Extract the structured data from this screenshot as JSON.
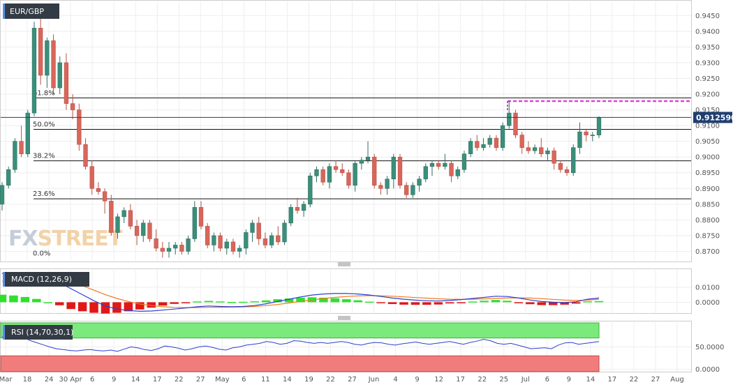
{
  "chart_data": [
    {
      "type": "candlestick",
      "title": "EUR/GBP",
      "ylim": [
        0.867,
        0.9495
      ],
      "y_ticks": [
        "0.9450",
        "0.9400",
        "0.9350",
        "0.9300",
        "0.9250",
        "0.9200",
        "0.9150",
        "0.9100",
        "0.9050",
        "0.9000",
        "0.8950",
        "0.8900",
        "0.8850",
        "0.8800",
        "0.8750",
        "0.8700"
      ],
      "x_ticks": [
        "Mar",
        "18",
        "24",
        "30 Apr",
        "6",
        "9",
        "14",
        "17",
        "22",
        "27",
        "May",
        "6",
        "11",
        "14",
        "19",
        "22",
        "27",
        "Jun",
        "4",
        "9",
        "12",
        "17",
        "22",
        "25",
        "Jul",
        "6",
        "9",
        "14",
        "17",
        "22",
        "27",
        "Aug"
      ],
      "last_price_label": "0.912590",
      "last_price": 0.91259,
      "resistance_level": 0.9178,
      "fib_levels": [
        {
          "label": "61.8%",
          "value": 0.9188
        },
        {
          "label": "50.0%",
          "value": 0.9088
        },
        {
          "label": "38.2%",
          "value": 0.8988
        },
        {
          "label": "23.6%",
          "value": 0.8867
        },
        {
          "label": "0.0%",
          "value": 0.8678
        }
      ],
      "candles": [
        [
          0.885,
          0.892,
          0.883,
          0.891
        ],
        [
          0.891,
          0.897,
          0.89,
          0.896
        ],
        [
          0.896,
          0.906,
          0.895,
          0.905
        ],
        [
          0.905,
          0.91,
          0.9,
          0.901
        ],
        [
          0.901,
          0.915,
          0.9,
          0.914
        ],
        [
          0.914,
          0.943,
          0.913,
          0.941
        ],
        [
          0.941,
          0.947,
          0.923,
          0.926
        ],
        [
          0.926,
          0.938,
          0.922,
          0.937
        ],
        [
          0.937,
          0.939,
          0.92,
          0.922
        ],
        [
          0.922,
          0.932,
          0.92,
          0.93
        ],
        [
          0.93,
          0.933,
          0.915,
          0.917
        ],
        [
          0.917,
          0.92,
          0.912,
          0.915
        ],
        [
          0.915,
          0.917,
          0.902,
          0.904
        ],
        [
          0.904,
          0.906,
          0.896,
          0.897
        ],
        [
          0.897,
          0.899,
          0.888,
          0.89
        ],
        [
          0.89,
          0.892,
          0.888,
          0.889
        ],
        [
          0.889,
          0.89,
          0.882,
          0.886
        ],
        [
          0.886,
          0.888,
          0.875,
          0.876
        ],
        [
          0.876,
          0.882,
          0.874,
          0.881
        ],
        [
          0.881,
          0.884,
          0.879,
          0.883
        ],
        [
          0.883,
          0.885,
          0.877,
          0.878
        ],
        [
          0.878,
          0.88,
          0.872,
          0.875
        ],
        [
          0.875,
          0.88,
          0.873,
          0.879
        ],
        [
          0.879,
          0.88,
          0.873,
          0.874
        ],
        [
          0.874,
          0.877,
          0.87,
          0.871
        ],
        [
          0.871,
          0.873,
          0.868,
          0.87
        ],
        [
          0.87,
          0.873,
          0.868,
          0.871
        ],
        [
          0.871,
          0.873,
          0.869,
          0.872
        ],
        [
          0.872,
          0.873,
          0.869,
          0.87
        ],
        [
          0.87,
          0.875,
          0.869,
          0.874
        ],
        [
          0.874,
          0.886,
          0.873,
          0.884
        ],
        [
          0.884,
          0.886,
          0.877,
          0.878
        ],
        [
          0.878,
          0.879,
          0.871,
          0.872
        ],
        [
          0.872,
          0.876,
          0.87,
          0.875
        ],
        [
          0.875,
          0.876,
          0.87,
          0.871
        ],
        [
          0.871,
          0.874,
          0.869,
          0.873
        ],
        [
          0.873,
          0.874,
          0.869,
          0.87
        ],
        [
          0.87,
          0.872,
          0.868,
          0.871
        ],
        [
          0.871,
          0.877,
          0.869,
          0.876
        ],
        [
          0.876,
          0.88,
          0.873,
          0.879
        ],
        [
          0.879,
          0.881,
          0.872,
          0.874
        ],
        [
          0.874,
          0.876,
          0.871,
          0.872
        ],
        [
          0.872,
          0.876,
          0.871,
          0.875
        ],
        [
          0.875,
          0.878,
          0.872,
          0.873
        ],
        [
          0.873,
          0.88,
          0.872,
          0.879
        ],
        [
          0.879,
          0.885,
          0.878,
          0.884
        ],
        [
          0.884,
          0.887,
          0.882,
          0.883
        ],
        [
          0.883,
          0.886,
          0.881,
          0.885
        ],
        [
          0.885,
          0.895,
          0.884,
          0.894
        ],
        [
          0.894,
          0.897,
          0.892,
          0.896
        ],
        [
          0.896,
          0.897,
          0.891,
          0.892
        ],
        [
          0.892,
          0.898,
          0.89,
          0.897
        ],
        [
          0.897,
          0.899,
          0.895,
          0.896
        ],
        [
          0.896,
          0.898,
          0.894,
          0.895
        ],
        [
          0.895,
          0.896,
          0.89,
          0.891
        ],
        [
          0.891,
          0.899,
          0.889,
          0.898
        ],
        [
          0.898,
          0.9,
          0.896,
          0.899
        ],
        [
          0.899,
          0.905,
          0.898,
          0.9
        ],
        [
          0.9,
          0.901,
          0.89,
          0.891
        ],
        [
          0.891,
          0.892,
          0.888,
          0.89
        ],
        [
          0.89,
          0.894,
          0.888,
          0.893
        ],
        [
          0.893,
          0.901,
          0.89,
          0.9
        ],
        [
          0.9,
          0.901,
          0.89,
          0.891
        ],
        [
          0.891,
          0.892,
          0.887,
          0.888
        ],
        [
          0.888,
          0.892,
          0.887,
          0.891
        ],
        [
          0.891,
          0.894,
          0.889,
          0.893
        ],
        [
          0.893,
          0.898,
          0.892,
          0.897
        ],
        [
          0.897,
          0.899,
          0.894,
          0.898
        ],
        [
          0.898,
          0.899,
          0.896,
          0.897
        ],
        [
          0.897,
          0.901,
          0.896,
          0.898
        ],
        [
          0.898,
          0.899,
          0.892,
          0.894
        ],
        [
          0.894,
          0.897,
          0.893,
          0.896
        ],
        [
          0.896,
          0.902,
          0.895,
          0.901
        ],
        [
          0.901,
          0.906,
          0.9,
          0.905
        ],
        [
          0.905,
          0.907,
          0.902,
          0.903
        ],
        [
          0.903,
          0.906,
          0.902,
          0.904
        ],
        [
          0.904,
          0.907,
          0.903,
          0.906
        ],
        [
          0.906,
          0.907,
          0.902,
          0.903
        ],
        [
          0.903,
          0.911,
          0.902,
          0.91
        ],
        [
          0.91,
          0.918,
          0.909,
          0.914
        ],
        [
          0.914,
          0.915,
          0.906,
          0.907
        ],
        [
          0.907,
          0.908,
          0.901,
          0.903
        ],
        [
          0.903,
          0.905,
          0.901,
          0.902
        ],
        [
          0.902,
          0.904,
          0.901,
          0.903
        ],
        [
          0.903,
          0.906,
          0.9,
          0.901
        ],
        [
          0.901,
          0.903,
          0.899,
          0.902
        ],
        [
          0.902,
          0.903,
          0.896,
          0.898
        ],
        [
          0.898,
          0.899,
          0.895,
          0.896
        ],
        [
          0.896,
          0.897,
          0.894,
          0.895
        ],
        [
          0.895,
          0.904,
          0.894,
          0.903
        ],
        [
          0.903,
          0.911,
          0.901,
          0.908
        ],
        [
          0.908,
          0.909,
          0.905,
          0.907
        ],
        [
          0.907,
          0.908,
          0.905,
          0.907
        ],
        [
          0.907,
          0.913,
          0.906,
          0.91259
        ]
      ]
    },
    {
      "type": "line",
      "title": "MACD (12,26,9)",
      "ylim": [
        -0.0072,
        0.0215
      ],
      "y_ticks": [
        "0.0100",
        "0.0000"
      ],
      "macd": [
        0.019,
        0.0197,
        0.0195,
        0.0185,
        0.016,
        0.013,
        0.009,
        0.005,
        0.001,
        -0.0025,
        -0.0045,
        -0.0055,
        -0.006,
        -0.0058,
        -0.0052,
        -0.0045,
        -0.0038,
        -0.003,
        -0.0025,
        -0.0028,
        -0.003,
        -0.0028,
        -0.0022,
        -0.001,
        0.0005,
        0.002,
        0.0035,
        0.0048,
        0.0055,
        0.0058,
        0.0058,
        0.0055,
        0.0048,
        0.0038,
        0.0028,
        0.002,
        0.0014,
        0.001,
        0.0008,
        0.0012,
        0.0018,
        0.0025,
        0.0032,
        0.004,
        0.0038,
        0.0028,
        0.0015,
        0.0005,
        0.0,
        -0.0002,
        0.0003,
        0.002,
        0.0028
      ],
      "signal": [
        0.014,
        0.0152,
        0.016,
        0.0163,
        0.016,
        0.015,
        0.0135,
        0.011,
        0.008,
        0.005,
        0.0025,
        0.0005,
        -0.0012,
        -0.0022,
        -0.003,
        -0.0034,
        -0.0036,
        -0.0035,
        -0.0034,
        -0.0033,
        -0.0032,
        -0.0031,
        -0.0028,
        -0.0022,
        -0.0015,
        -0.0005,
        0.0005,
        0.0015,
        0.0025,
        0.0032,
        0.0038,
        0.0042,
        0.0044,
        0.0043,
        0.004,
        0.0036,
        0.0031,
        0.0027,
        0.0023,
        0.002,
        0.0019,
        0.002,
        0.0022,
        0.0025,
        0.0028,
        0.0029,
        0.0028,
        0.0024,
        0.0019,
        0.0014,
        0.0012,
        0.0014,
        0.002
      ]
    },
    {
      "type": "line",
      "title": "RSI (14,70,30,1)",
      "ylim": [
        0,
        100
      ],
      "y_ticks": [
        "50.0000",
        "0.0000"
      ],
      "bands": [
        70,
        30
      ],
      "rsi": [
        72,
        78,
        80,
        74,
        65,
        60,
        55,
        50,
        46,
        44,
        42,
        41,
        43,
        44,
        42,
        41,
        43,
        40,
        45,
        50,
        48,
        44,
        42,
        46,
        52,
        50,
        47,
        43,
        46,
        50,
        52,
        49,
        45,
        43,
        48,
        50,
        54,
        56,
        58,
        62,
        60,
        56,
        58,
        64,
        63,
        60,
        58,
        60,
        58,
        60,
        62,
        60,
        56,
        54,
        58,
        60,
        59,
        56,
        54,
        57,
        59,
        61,
        58,
        56,
        58,
        60,
        62,
        59,
        56,
        60,
        63,
        67,
        64,
        58,
        56,
        58,
        54,
        50,
        46,
        47,
        48,
        46,
        54,
        59,
        60,
        56,
        58,
        60,
        62
      ]
    }
  ],
  "logo": {
    "part1": "FX",
    "part2": "STREET"
  }
}
